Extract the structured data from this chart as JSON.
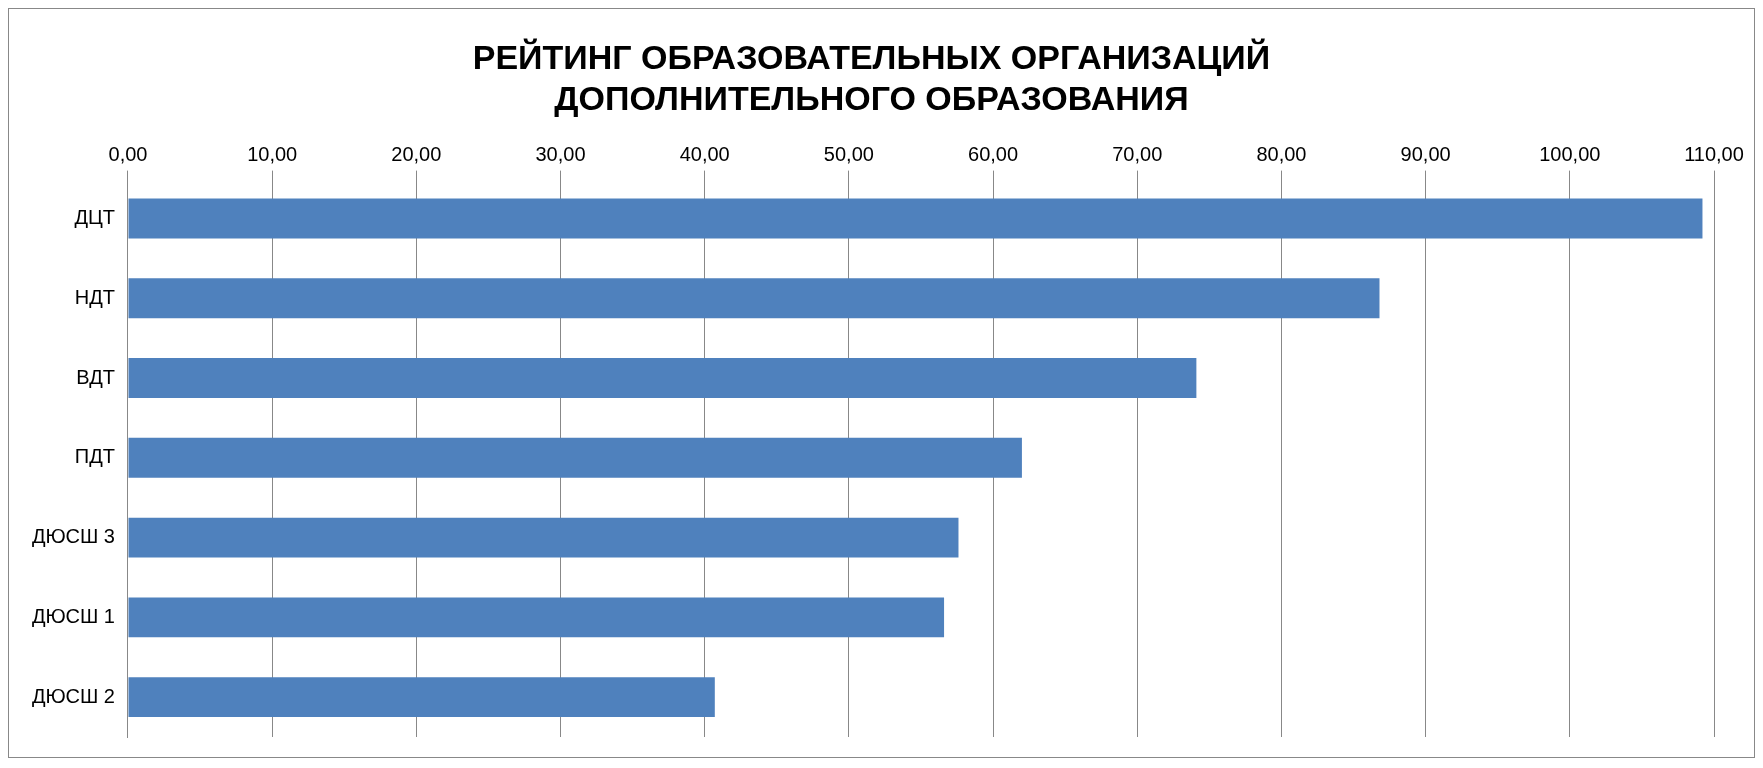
{
  "chart_data": {
    "type": "bar",
    "orientation": "horizontal",
    "title": "РЕЙТИНГ ОБРАЗОВАТЕЛЬНЫХ ОРГАНИЗАЦИЙ ДОПОЛНИТЕЛЬНОГО ОБРАЗОВАНИЯ",
    "categories": [
      "ДЦТ",
      "НДТ",
      "ВДТ",
      "ПДТ",
      "ДЮСШ 3",
      "ДЮСШ 1",
      "ДЮСШ 2"
    ],
    "values": [
      109.2,
      86.8,
      74.1,
      62.0,
      57.6,
      56.6,
      40.7
    ],
    "color": "#4f81bd",
    "xlim": [
      0,
      110
    ],
    "xticks": [
      {
        "value": 0,
        "label": "0,00"
      },
      {
        "value": 10,
        "label": "10,00"
      },
      {
        "value": 20,
        "label": "20,00"
      },
      {
        "value": 30,
        "label": "30,00"
      },
      {
        "value": 40,
        "label": "40,00"
      },
      {
        "value": 50,
        "label": "50,00"
      },
      {
        "value": 60,
        "label": "60,00"
      },
      {
        "value": 70,
        "label": "70,00"
      },
      {
        "value": 80,
        "label": "80,00"
      },
      {
        "value": 90,
        "label": "90,00"
      },
      {
        "value": 100,
        "label": "100,00"
      },
      {
        "value": 110,
        "label": "110,00"
      }
    ],
    "grid": "x",
    "legend": false
  }
}
